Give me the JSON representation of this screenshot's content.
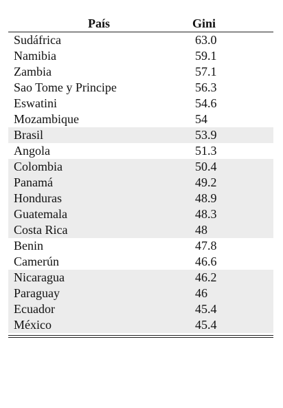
{
  "table": {
    "headers": {
      "country": "País",
      "gini": "Gini"
    },
    "rows": [
      {
        "country": "Sudáfrica",
        "gini": "63.0",
        "shaded": false
      },
      {
        "country": "Namibia",
        "gini": "59.1",
        "shaded": false
      },
      {
        "country": "Zambia",
        "gini": "57.1",
        "shaded": false
      },
      {
        "country": "Sao Tome y Principe",
        "gini": "56.3",
        "shaded": false
      },
      {
        "country": "Eswatini",
        "gini": "54.6",
        "shaded": false
      },
      {
        "country": "Mozambique",
        "gini": "54",
        "shaded": false
      },
      {
        "country": "Brasil",
        "gini": "53.9",
        "shaded": true
      },
      {
        "country": "Angola",
        "gini": "51.3",
        "shaded": false
      },
      {
        "country": "Colombia",
        "gini": "50.4",
        "shaded": true
      },
      {
        "country": "Panamá",
        "gini": "49.2",
        "shaded": true
      },
      {
        "country": "Honduras",
        "gini": "48.9",
        "shaded": true
      },
      {
        "country": "Guatemala",
        "gini": "48.3",
        "shaded": true
      },
      {
        "country": "Costa Rica",
        "gini": "48",
        "shaded": true
      },
      {
        "country": "Benin",
        "gini": "47.8",
        "shaded": false
      },
      {
        "country": "Camerún",
        "gini": "46.6",
        "shaded": false
      },
      {
        "country": "Nicaragua",
        "gini": "46.2",
        "shaded": true
      },
      {
        "country": "Paraguay",
        "gini": "46",
        "shaded": true
      },
      {
        "country": "Ecuador",
        "gini": "45.4",
        "shaded": true
      },
      {
        "country": "México",
        "gini": "45.4",
        "shaded": true
      }
    ]
  },
  "colors": {
    "shade": "#ececec",
    "rule": "#222222"
  }
}
